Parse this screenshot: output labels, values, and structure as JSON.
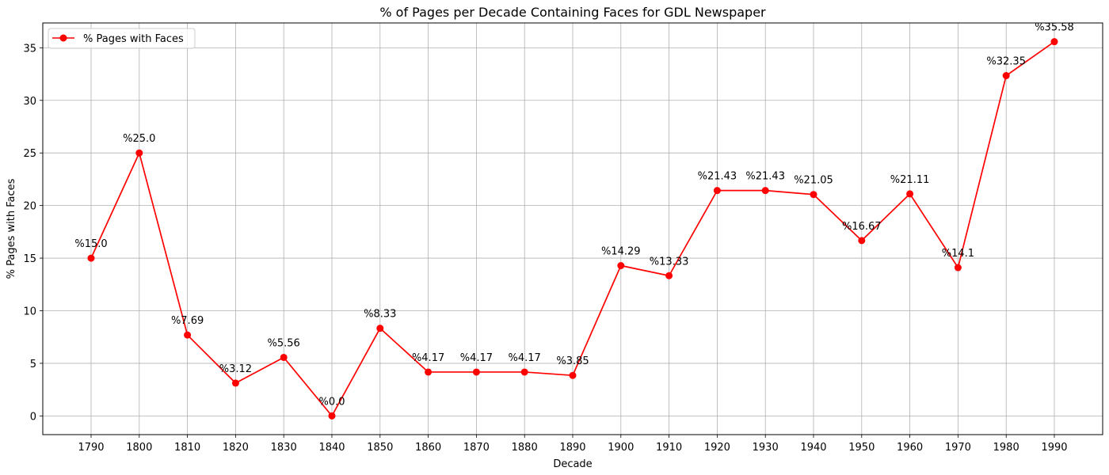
{
  "chart_data": {
    "type": "line",
    "title": "% of Pages per Decade Containing Faces for GDL Newspaper",
    "xlabel": "Decade",
    "ylabel": "% Pages with Faces",
    "categories": [
      "1790",
      "1800",
      "1810",
      "1820",
      "1830",
      "1840",
      "1850",
      "1860",
      "1870",
      "1880",
      "1890",
      "1900",
      "1910",
      "1920",
      "1930",
      "1940",
      "1950",
      "1960",
      "1970",
      "1980",
      "1990"
    ],
    "series": [
      {
        "name": "% Pages with Faces",
        "color": "#ff0000",
        "values": [
          15.0,
          25.0,
          7.69,
          3.12,
          5.56,
          0.0,
          8.33,
          4.17,
          4.17,
          4.17,
          3.85,
          14.29,
          13.33,
          21.43,
          21.43,
          21.05,
          16.67,
          21.11,
          14.1,
          32.35,
          35.58
        ],
        "labels": [
          "%15.0",
          "%25.0",
          "%7.69",
          "%3.12",
          "%5.56",
          "%0.0",
          "%8.33",
          "%4.17",
          "%4.17",
          "%4.17",
          "%3.85",
          "%14.29",
          "%13.33",
          "%21.43",
          "%21.43",
          "%21.05",
          "%16.67",
          "%21.11",
          "%14.1",
          "%32.35",
          "%35.58"
        ]
      }
    ],
    "yticks": [
      0,
      5,
      10,
      15,
      20,
      25,
      30,
      35
    ],
    "ylim": [
      -1.78,
      37.36
    ],
    "grid": true,
    "legend_position": "top-left"
  }
}
